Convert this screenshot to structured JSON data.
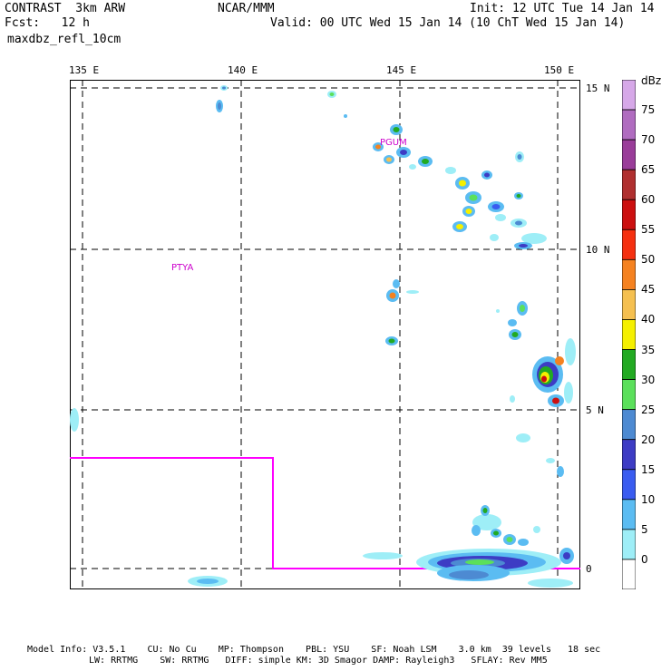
{
  "header": {
    "model": "CONTRAST  3km ARW",
    "forecast": "Fcst:   12 h",
    "field": "maxdbz_refl_10cm",
    "center": "NCAR/MMM",
    "init": "Init: 12 UTC Tue 14 Jan 14",
    "valid": "Valid: 00 UTC Wed 15 Jan 14 (10 ChT Wed 15 Jan 14)"
  },
  "map": {
    "lon_labels": [
      "135 E",
      "140 E",
      "145 E",
      "150 E"
    ],
    "lat_labels": [
      "15 N",
      "10 N",
      "5 N",
      "0"
    ],
    "places": [
      "PGUM",
      "PTYA"
    ],
    "box_color": "#ff00ff"
  },
  "colorbar": {
    "units": "dBz",
    "levels": [
      "75",
      "70",
      "65",
      "60",
      "55",
      "50",
      "45",
      "40",
      "35",
      "30",
      "25",
      "20",
      "15",
      "10",
      "5",
      "0"
    ],
    "colors": [
      "#ffffff",
      "#9eeef7",
      "#5bbcf2",
      "#3a5cf0",
      "#3d3cc4",
      "#4d8ad2",
      "#5be05b",
      "#22aa22",
      "#f5f000",
      "#f5c050",
      "#f58220",
      "#f53010",
      "#cc1010",
      "#b03030",
      "#9a3d9a",
      "#b06cc0",
      "#d6a8e8"
    ]
  },
  "footer": {
    "line1": "Model Info: V3.5.1    CU: No Cu    MP: Thompson    PBL: YSU    SF: Noah LSM    3.0 km  39 levels   18 sec",
    "line2": "LW: RRTMG    SW: RRTMG   DIFF: simple KM: 3D Smagor DAMP: Rayleigh3   SFLAY: Rev MM5"
  }
}
